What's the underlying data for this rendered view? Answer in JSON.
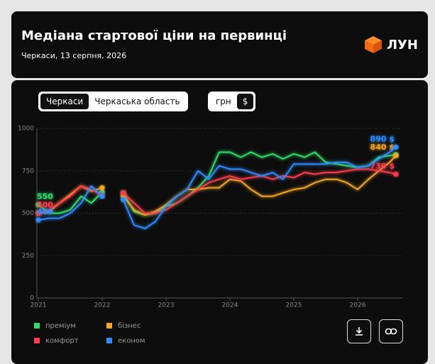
{
  "header": {
    "title": "Медіана стартової ціни на первинці",
    "subtitle": "Черкаси, 13 серпня, 2026",
    "logo": "ЛУН"
  },
  "controls": {
    "region_tabs": [
      "Черкаси",
      "Черкаська область"
    ],
    "currency_tabs": [
      "грн",
      "$"
    ]
  },
  "chart_data": {
    "type": "line",
    "x": [
      2021.0,
      2021.17,
      2021.33,
      2021.5,
      2021.67,
      2021.83,
      2022.0,
      2022.17,
      2022.33,
      2022.5,
      2022.67,
      2022.83,
      2023.0,
      2023.17,
      2023.33,
      2023.5,
      2023.67,
      2023.83,
      2024.0,
      2024.17,
      2024.33,
      2024.5,
      2024.67,
      2024.83,
      2025.0,
      2025.17,
      2025.33,
      2025.5,
      2025.67,
      2025.83,
      2026.0,
      2026.17,
      2026.33,
      2026.5,
      2026.6
    ],
    "xlim": [
      2021,
      2026.7
    ],
    "xticks": [
      2021,
      2022,
      2023,
      2024,
      2025,
      2026
    ],
    "ylim": [
      0,
      1000
    ],
    "yticks": [
      0,
      250,
      500,
      750,
      1000
    ],
    "grid": true,
    "series": [
      {
        "name": "преміум",
        "color": "#2ee06a",
        "values": [
          550,
          500,
          500,
          520,
          600,
          560,
          625,
          null,
          620,
          510,
          490,
          500,
          540,
          560,
          600,
          650,
          720,
          860,
          860,
          830,
          860,
          830,
          850,
          820,
          850,
          830,
          860,
          800,
          790,
          780,
          770,
          780,
          830,
          840,
          845
        ],
        "value_labels": [
          "550",
          null,
          null,
          null,
          null,
          null,
          null,
          null,
          null,
          null,
          null,
          null,
          null,
          null,
          null,
          null,
          null,
          null,
          null,
          null,
          null,
          null,
          null,
          null,
          null,
          null,
          null,
          null,
          null,
          null,
          null,
          null,
          null,
          null,
          null
        ]
      },
      {
        "name": "бізнес",
        "color": "#f5a623",
        "values": [
          500,
          510,
          560,
          610,
          660,
          630,
          650,
          null,
          600,
          520,
          490,
          510,
          550,
          600,
          640,
          640,
          650,
          650,
          700,
          690,
          640,
          600,
          600,
          620,
          640,
          650,
          680,
          700,
          700,
          680,
          640,
          700,
          750,
          800,
          840
        ],
        "value_labels": [
          null,
          null,
          null,
          null,
          null,
          null,
          null,
          null,
          null,
          null,
          null,
          null,
          null,
          null,
          null,
          null,
          null,
          null,
          null,
          null,
          null,
          null,
          null,
          null,
          null,
          null,
          null,
          null,
          null,
          null,
          null,
          null,
          null,
          null,
          "840 $"
        ]
      },
      {
        "name": "комфорт",
        "color": "#ff3b4e",
        "values": [
          500,
          520,
          560,
          600,
          660,
          640,
          605,
          null,
          620,
          560,
          500,
          500,
          520,
          560,
          600,
          640,
          680,
          700,
          720,
          700,
          710,
          720,
          700,
          720,
          710,
          740,
          730,
          740,
          740,
          750,
          760,
          760,
          750,
          740,
          730
        ],
        "value_labels": [
          "500",
          null,
          null,
          null,
          null,
          null,
          null,
          null,
          null,
          null,
          null,
          null,
          null,
          null,
          null,
          null,
          null,
          null,
          null,
          null,
          null,
          null,
          null,
          null,
          null,
          null,
          null,
          null,
          null,
          null,
          null,
          null,
          null,
          null,
          "730 $"
        ]
      },
      {
        "name": "економ",
        "color": "#2f8cff",
        "values": [
          460,
          470,
          470,
          500,
          560,
          660,
          600,
          null,
          580,
          430,
          410,
          450,
          540,
          600,
          640,
          750,
          700,
          780,
          760,
          760,
          740,
          720,
          740,
          700,
          790,
          790,
          790,
          790,
          800,
          800,
          770,
          780,
          820,
          860,
          890
        ],
        "value_labels": [
          "460",
          null,
          null,
          null,
          null,
          null,
          null,
          null,
          null,
          null,
          null,
          null,
          null,
          null,
          null,
          null,
          null,
          null,
          null,
          null,
          null,
          null,
          null,
          null,
          null,
          null,
          null,
          null,
          null,
          null,
          null,
          null,
          null,
          null,
          "890 $"
        ]
      }
    ]
  }
}
